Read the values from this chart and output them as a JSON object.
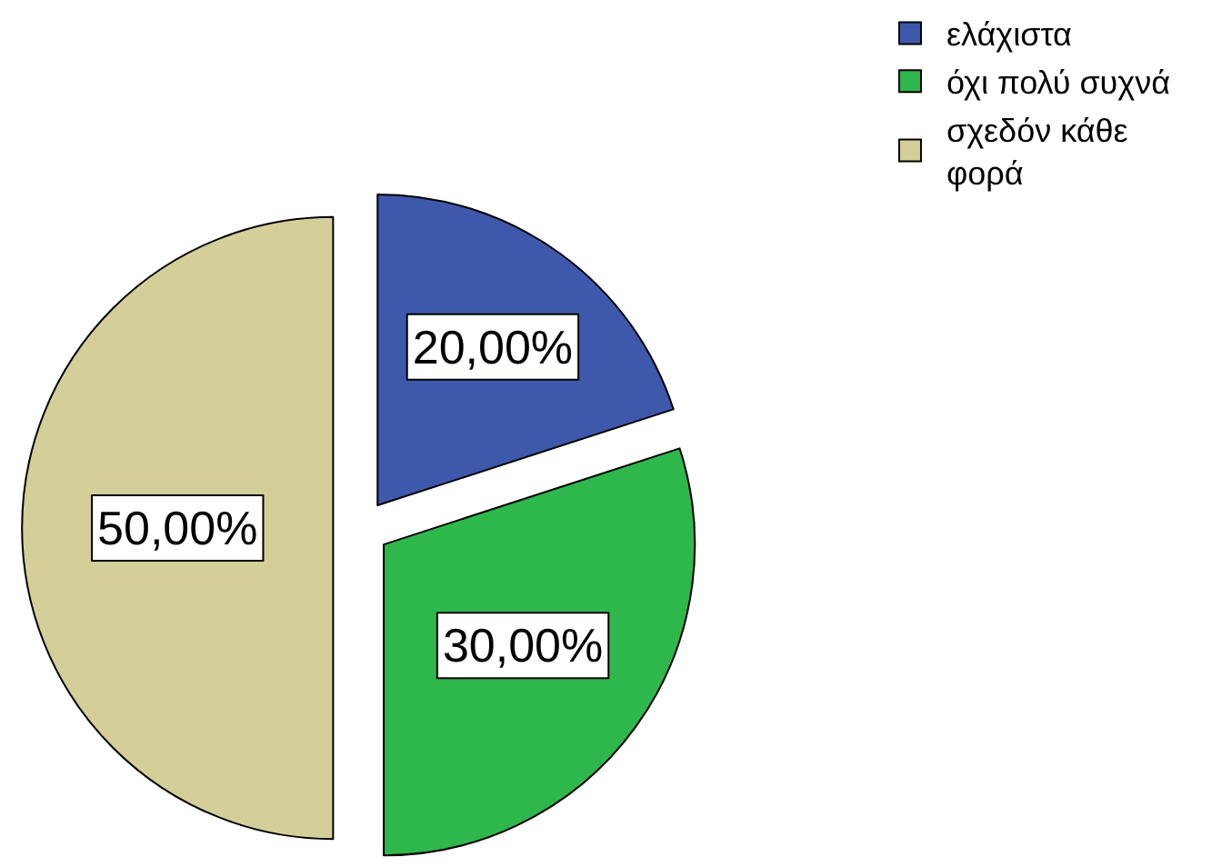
{
  "chart_data": {
    "type": "pie",
    "categories": [
      "ελάχιστα",
      "όχι πολύ συχνά",
      "σχεδόν κάθε φορά"
    ],
    "values": [
      20,
      30,
      50
    ],
    "colors": [
      "#3e58ac",
      "#2eb84b",
      "#d4ce99"
    ],
    "value_labels": [
      "20,00%",
      "30,00%",
      "50,00%"
    ],
    "legend": "top right"
  }
}
